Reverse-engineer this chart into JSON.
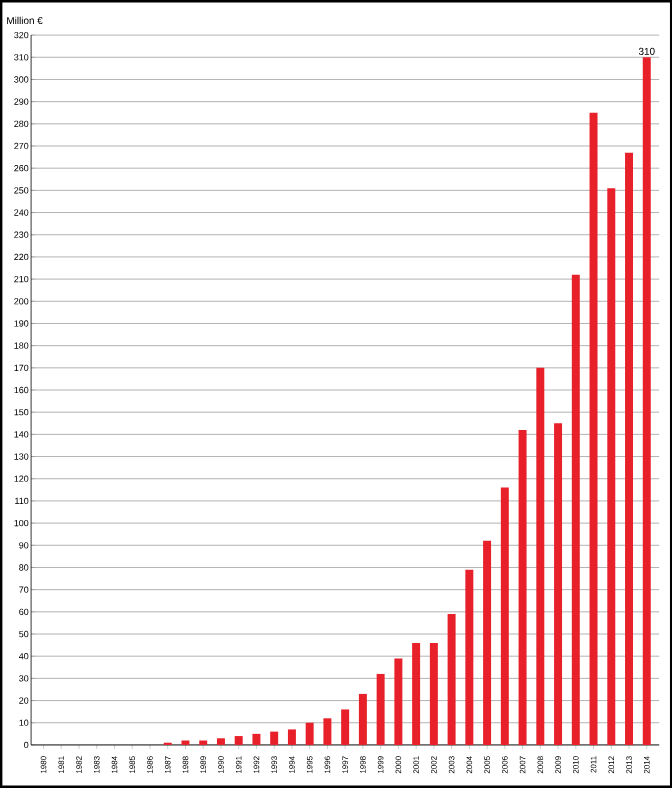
{
  "chart_data": {
    "type": "bar",
    "ylabel": "Million €",
    "categories": [
      "1980",
      "1981",
      "1982",
      "1983",
      "1984",
      "1985",
      "1986",
      "1987",
      "1988",
      "1989",
      "1990",
      "1991",
      "1992",
      "1993",
      "1994",
      "1995",
      "1996",
      "1997",
      "1998",
      "1999",
      "2000",
      "2001",
      "2002",
      "2003",
      "2004",
      "2005",
      "2006",
      "2007",
      "2008",
      "2009",
      "2010",
      "2011",
      "2012",
      "2013",
      "2014"
    ],
    "values": [
      0,
      0,
      0,
      0,
      0,
      0,
      0,
      1,
      2,
      2,
      3,
      4,
      5,
      6,
      7,
      10,
      12,
      16,
      23,
      32,
      39,
      46,
      46,
      59,
      79,
      92,
      116,
      142,
      170,
      145,
      212,
      285,
      251,
      267,
      310
    ],
    "value_labels": [
      null,
      null,
      null,
      null,
      null,
      null,
      null,
      null,
      null,
      null,
      null,
      null,
      null,
      null,
      null,
      null,
      null,
      null,
      null,
      null,
      null,
      null,
      null,
      null,
      null,
      null,
      null,
      null,
      null,
      null,
      null,
      null,
      null,
      null,
      "310"
    ],
    "color": "#e8202a",
    "ylim": [
      0,
      320
    ],
    "yticks": [
      0,
      10,
      20,
      30,
      40,
      50,
      60,
      70,
      80,
      90,
      100,
      110,
      120,
      130,
      140,
      150,
      160,
      170,
      180,
      190,
      200,
      210,
      220,
      230,
      240,
      250,
      260,
      270,
      280,
      290,
      300,
      310,
      320
    ],
    "grid": "y"
  }
}
